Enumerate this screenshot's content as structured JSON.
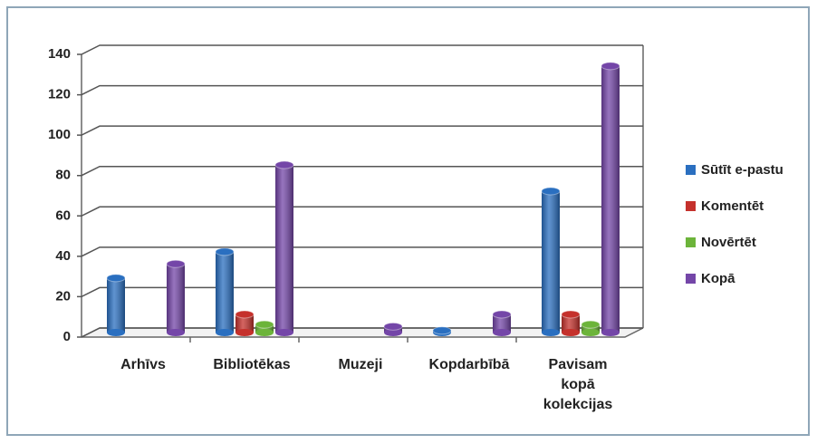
{
  "chart_data": {
    "type": "bar",
    "categories": [
      "Arhīvs",
      "Bibliotēkas",
      "Muzeji",
      "Kopdarbībā",
      "Pavisam kopā kolekcijas"
    ],
    "series": [
      {
        "name": "Sūtīt e-pastu",
        "color": "#2a6fc0",
        "values": [
          27,
          40,
          0,
          1,
          70
        ]
      },
      {
        "name": "Komentēt",
        "color": "#c5312c",
        "values": [
          0,
          9,
          0,
          0,
          9
        ]
      },
      {
        "name": "Novērtēt",
        "color": "#6cb43a",
        "values": [
          0,
          4,
          0,
          0,
          4
        ]
      },
      {
        "name": "Kopā",
        "color": "#7446a8",
        "values": [
          34,
          83,
          3,
          9,
          132
        ]
      }
    ],
    "ylim": [
      0,
      140
    ],
    "yticks": [
      0,
      20,
      40,
      60,
      80,
      100,
      120,
      140
    ],
    "grid": true,
    "legend": "right"
  }
}
